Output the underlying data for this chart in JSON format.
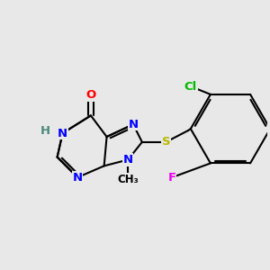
{
  "bg_color": "#e8e8e8",
  "bond_color": "#000000",
  "bond_width": 1.5,
  "atom_colors": {
    "N": "#0000ff",
    "O": "#ff0000",
    "S": "#b8b800",
    "Cl": "#00bb00",
    "F": "#ee00ee",
    "H": "#4a8a7a",
    "C": "#000000"
  },
  "font_size": 9.5,
  "fig_width": 3.0,
  "fig_height": 3.0,
  "dpi": 100
}
